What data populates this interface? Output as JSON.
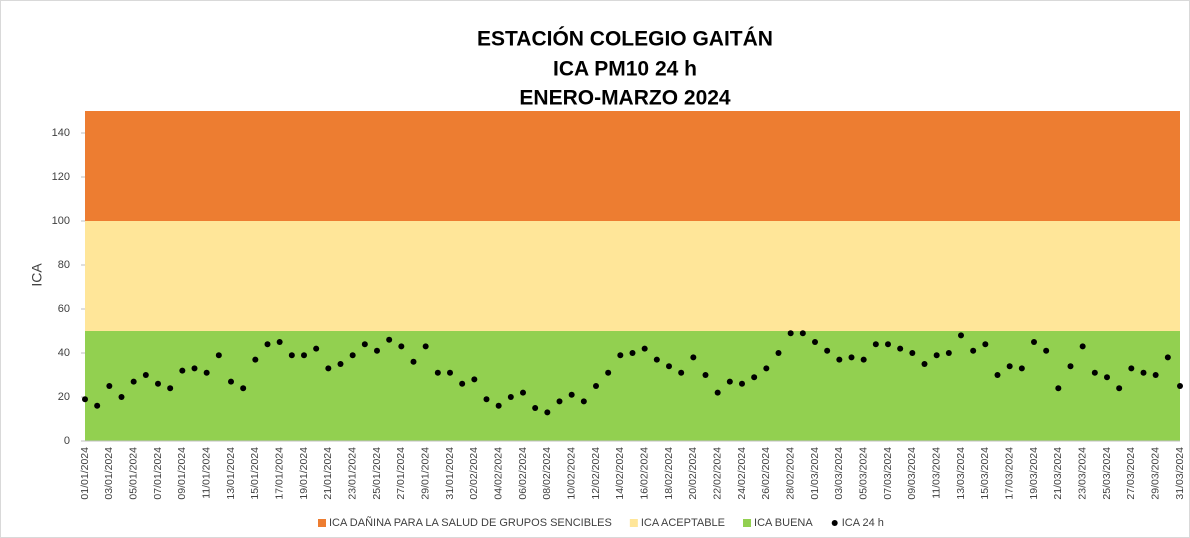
{
  "chart_data": {
    "type": "scatter",
    "title": [
      "ESTACIÓN COLEGIO GAITÁN",
      "ICA PM10 24 h",
      "ENERO-MARZO 2024"
    ],
    "y_label": "ICA",
    "ylim": [
      0,
      150
    ],
    "yticks": [
      0,
      20,
      40,
      60,
      80,
      100,
      120,
      140
    ],
    "bands": [
      {
        "name": "ICA DAÑINA PARA LA SALUD DE GRUPOS SENCIBLES",
        "color": "#ed7d31",
        "value": 50
      },
      {
        "name": "ICA ACEPTABLE",
        "color": "#ffe699",
        "value": 50
      },
      {
        "name": "ICA BUENA",
        "color": "#92d050",
        "value": 50
      }
    ],
    "categories": [
      "01/01/2024",
      null,
      "03/01/2024",
      null,
      "05/01/2024",
      null,
      "07/01/2024",
      null,
      "09/01/2024",
      null,
      "11/01/2024",
      null,
      "13/01/2024",
      null,
      "15/01/2024",
      null,
      "17/01/2024",
      null,
      "19/01/2024",
      null,
      "21/01/2024",
      null,
      "23/01/2024",
      null,
      "25/01/2024",
      null,
      "27/01/2024",
      null,
      "29/01/2024",
      null,
      "31/01/2024",
      null,
      "02/02/2024",
      null,
      "04/02/2024",
      null,
      "06/02/2024",
      null,
      "08/02/2024",
      null,
      "10/02/2024",
      null,
      "12/02/2024",
      null,
      "14/02/2024",
      null,
      "16/02/2024",
      null,
      "18/02/2024",
      null,
      "20/02/2024",
      null,
      "22/02/2024",
      null,
      "24/02/2024",
      null,
      "26/02/2024",
      null,
      "28/02/2024",
      null,
      "01/03/2024",
      null,
      "03/03/2024",
      null,
      "05/03/2024",
      null,
      "07/03/2024",
      null,
      "09/03/2024",
      null,
      "11/03/2024",
      null,
      "13/03/2024",
      null,
      "15/03/2024",
      null,
      "17/03/2024",
      null,
      "19/03/2024",
      null,
      "21/03/2024",
      null,
      "23/03/2024",
      null,
      "25/03/2024",
      null,
      "27/03/2024",
      null,
      "29/03/2024",
      null,
      "31/03/2024"
    ],
    "series": [
      {
        "name": "ICA 24 h",
        "color": "#000000",
        "values": [
          19,
          16,
          25,
          20,
          27,
          30,
          26,
          24,
          32,
          33,
          31,
          39,
          27,
          24,
          37,
          44,
          45,
          39,
          39,
          42,
          33,
          35,
          39,
          44,
          41,
          46,
          43,
          36,
          43,
          31,
          31,
          26,
          28,
          19,
          16,
          20,
          22,
          15,
          13,
          18,
          21,
          18,
          25,
          31,
          39,
          40,
          42,
          37,
          34,
          31,
          38,
          30,
          22,
          27,
          26,
          29,
          33,
          40,
          49,
          49,
          45,
          41,
          37,
          38,
          37,
          44,
          44,
          42,
          40,
          35,
          39,
          40,
          48,
          41,
          44,
          30,
          34,
          33,
          45,
          41,
          24,
          34,
          43,
          31,
          29,
          24,
          33,
          31,
          30,
          38,
          25
        ]
      }
    ]
  }
}
